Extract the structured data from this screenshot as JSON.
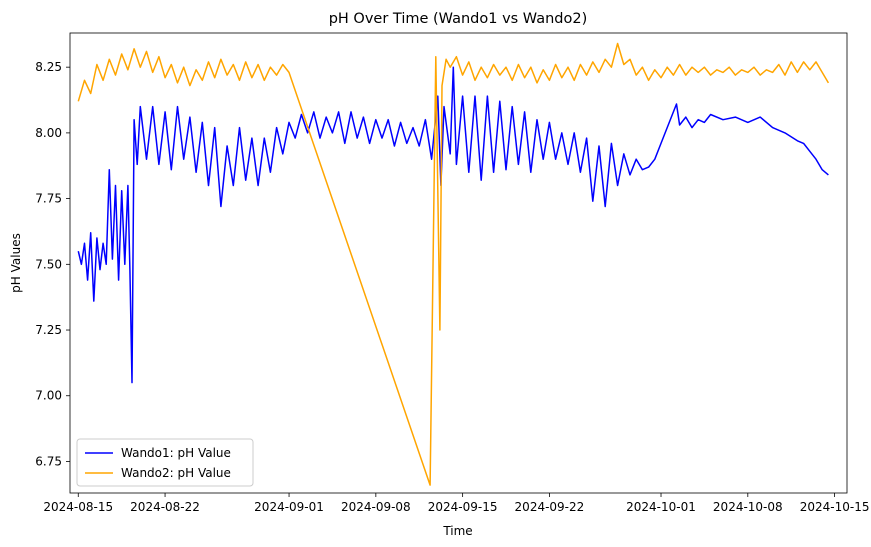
{
  "chart_data": {
    "type": "line",
    "title": "pH Over Time (Wando1 vs Wando2)",
    "xlabel": "Time",
    "ylabel": "pH Values",
    "x_ticks": [
      "2024-08-15",
      "2024-08-22",
      "2024-09-01",
      "2024-09-08",
      "2024-09-15",
      "2024-09-22",
      "2024-10-01",
      "2024-10-08",
      "2024-10-15"
    ],
    "y_ticks": [
      "6.75",
      "7.00",
      "7.25",
      "7.50",
      "7.75",
      "8.00",
      "8.25"
    ],
    "xlim": [
      "2024-08-14T08:00",
      "2024-10-16T00:00"
    ],
    "ylim": [
      6.63,
      8.38
    ],
    "grid": false,
    "legend_position": "lower-left",
    "series": [
      {
        "name": "Wando1: pH Value",
        "color": "#0000ff",
        "points": [
          [
            "2024-08-15T00:00",
            7.55
          ],
          [
            "2024-08-15T06:00",
            7.5
          ],
          [
            "2024-08-15T12:00",
            7.58
          ],
          [
            "2024-08-15T18:00",
            7.44
          ],
          [
            "2024-08-16T00:00",
            7.62
          ],
          [
            "2024-08-16T06:00",
            7.36
          ],
          [
            "2024-08-16T12:00",
            7.6
          ],
          [
            "2024-08-16T18:00",
            7.48
          ],
          [
            "2024-08-17T00:00",
            7.58
          ],
          [
            "2024-08-17T06:00",
            7.5
          ],
          [
            "2024-08-17T12:00",
            7.86
          ],
          [
            "2024-08-17T18:00",
            7.52
          ],
          [
            "2024-08-18T00:00",
            7.8
          ],
          [
            "2024-08-18T06:00",
            7.44
          ],
          [
            "2024-08-18T12:00",
            7.78
          ],
          [
            "2024-08-18T18:00",
            7.5
          ],
          [
            "2024-08-19T00:00",
            7.8
          ],
          [
            "2024-08-19T04:00",
            7.48
          ],
          [
            "2024-08-19T08:00",
            7.05
          ],
          [
            "2024-08-19T12:00",
            8.05
          ],
          [
            "2024-08-19T18:00",
            7.88
          ],
          [
            "2024-08-20T00:00",
            8.1
          ],
          [
            "2024-08-20T12:00",
            7.9
          ],
          [
            "2024-08-21T00:00",
            8.1
          ],
          [
            "2024-08-21T12:00",
            7.88
          ],
          [
            "2024-08-22T00:00",
            8.08
          ],
          [
            "2024-08-22T12:00",
            7.86
          ],
          [
            "2024-08-23T00:00",
            8.1
          ],
          [
            "2024-08-23T12:00",
            7.9
          ],
          [
            "2024-08-24T00:00",
            8.06
          ],
          [
            "2024-08-24T12:00",
            7.85
          ],
          [
            "2024-08-25T00:00",
            8.04
          ],
          [
            "2024-08-25T12:00",
            7.8
          ],
          [
            "2024-08-26T00:00",
            8.02
          ],
          [
            "2024-08-26T12:00",
            7.72
          ],
          [
            "2024-08-27T00:00",
            7.95
          ],
          [
            "2024-08-27T12:00",
            7.8
          ],
          [
            "2024-08-28T00:00",
            8.02
          ],
          [
            "2024-08-28T12:00",
            7.82
          ],
          [
            "2024-08-29T00:00",
            7.98
          ],
          [
            "2024-08-29T12:00",
            7.8
          ],
          [
            "2024-08-30T00:00",
            7.98
          ],
          [
            "2024-08-30T12:00",
            7.85
          ],
          [
            "2024-08-31T00:00",
            8.02
          ],
          [
            "2024-08-31T12:00",
            7.92
          ],
          [
            "2024-09-01T00:00",
            8.04
          ],
          [
            "2024-09-01T12:00",
            7.98
          ],
          [
            "2024-09-02T00:00",
            8.07
          ],
          [
            "2024-09-02T12:00",
            8.0
          ],
          [
            "2024-09-03T00:00",
            8.08
          ],
          [
            "2024-09-03T12:00",
            7.98
          ],
          [
            "2024-09-04T00:00",
            8.06
          ],
          [
            "2024-09-04T12:00",
            8.0
          ],
          [
            "2024-09-05T00:00",
            8.08
          ],
          [
            "2024-09-05T12:00",
            7.96
          ],
          [
            "2024-09-06T00:00",
            8.08
          ],
          [
            "2024-09-06T12:00",
            7.98
          ],
          [
            "2024-09-07T00:00",
            8.06
          ],
          [
            "2024-09-07T12:00",
            7.96
          ],
          [
            "2024-09-08T00:00",
            8.05
          ],
          [
            "2024-09-08T12:00",
            7.98
          ],
          [
            "2024-09-09T00:00",
            8.05
          ],
          [
            "2024-09-09T12:00",
            7.95
          ],
          [
            "2024-09-10T00:00",
            8.04
          ],
          [
            "2024-09-10T12:00",
            7.96
          ],
          [
            "2024-09-11T00:00",
            8.02
          ],
          [
            "2024-09-11T12:00",
            7.95
          ],
          [
            "2024-09-12T00:00",
            8.05
          ],
          [
            "2024-09-12T12:00",
            7.9
          ],
          [
            "2024-09-13T00:00",
            8.14
          ],
          [
            "2024-09-13T06:00",
            7.8
          ],
          [
            "2024-09-13T12:00",
            8.1
          ],
          [
            "2024-09-14T00:00",
            7.92
          ],
          [
            "2024-09-14T06:00",
            8.25
          ],
          [
            "2024-09-14T12:00",
            7.88
          ],
          [
            "2024-09-15T00:00",
            8.14
          ],
          [
            "2024-09-15T12:00",
            7.85
          ],
          [
            "2024-09-16T00:00",
            8.14
          ],
          [
            "2024-09-16T12:00",
            7.82
          ],
          [
            "2024-09-17T00:00",
            8.14
          ],
          [
            "2024-09-17T12:00",
            7.85
          ],
          [
            "2024-09-18T00:00",
            8.12
          ],
          [
            "2024-09-18T12:00",
            7.86
          ],
          [
            "2024-09-19T00:00",
            8.1
          ],
          [
            "2024-09-19T12:00",
            7.88
          ],
          [
            "2024-09-20T00:00",
            8.08
          ],
          [
            "2024-09-20T12:00",
            7.85
          ],
          [
            "2024-09-21T00:00",
            8.05
          ],
          [
            "2024-09-21T12:00",
            7.9
          ],
          [
            "2024-09-22T00:00",
            8.04
          ],
          [
            "2024-09-22T12:00",
            7.9
          ],
          [
            "2024-09-23T00:00",
            8.0
          ],
          [
            "2024-09-23T12:00",
            7.88
          ],
          [
            "2024-09-24T00:00",
            8.0
          ],
          [
            "2024-09-24T12:00",
            7.85
          ],
          [
            "2024-09-25T00:00",
            7.98
          ],
          [
            "2024-09-25T12:00",
            7.74
          ],
          [
            "2024-09-26T00:00",
            7.95
          ],
          [
            "2024-09-26T12:00",
            7.72
          ],
          [
            "2024-09-27T00:00",
            7.96
          ],
          [
            "2024-09-27T12:00",
            7.8
          ],
          [
            "2024-09-28T00:00",
            7.92
          ],
          [
            "2024-09-28T12:00",
            7.84
          ],
          [
            "2024-09-29T00:00",
            7.9
          ],
          [
            "2024-09-29T12:00",
            7.86
          ],
          [
            "2024-09-30T00:00",
            7.87
          ],
          [
            "2024-09-30T12:00",
            7.9
          ],
          [
            "2024-10-01T00:00",
            7.96
          ],
          [
            "2024-10-01T12:00",
            8.02
          ],
          [
            "2024-10-02T00:00",
            8.08
          ],
          [
            "2024-10-02T06:00",
            8.11
          ],
          [
            "2024-10-02T12:00",
            8.03
          ],
          [
            "2024-10-03T00:00",
            8.06
          ],
          [
            "2024-10-03T12:00",
            8.02
          ],
          [
            "2024-10-04T00:00",
            8.05
          ],
          [
            "2024-10-04T12:00",
            8.04
          ],
          [
            "2024-10-05T00:00",
            8.07
          ],
          [
            "2024-10-06T00:00",
            8.05
          ],
          [
            "2024-10-07T00:00",
            8.06
          ],
          [
            "2024-10-08T00:00",
            8.04
          ],
          [
            "2024-10-09T00:00",
            8.06
          ],
          [
            "2024-10-10T00:00",
            8.02
          ],
          [
            "2024-10-11T00:00",
            8.0
          ],
          [
            "2024-10-12T00:00",
            7.97
          ],
          [
            "2024-10-12T12:00",
            7.96
          ],
          [
            "2024-10-13T00:00",
            7.93
          ],
          [
            "2024-10-13T12:00",
            7.9
          ],
          [
            "2024-10-14T00:00",
            7.86
          ],
          [
            "2024-10-14T12:00",
            7.84
          ]
        ]
      },
      {
        "name": "Wando2: pH Value",
        "color": "#ffa500",
        "points": [
          [
            "2024-08-15T00:00",
            8.12
          ],
          [
            "2024-08-15T12:00",
            8.2
          ],
          [
            "2024-08-16T00:00",
            8.15
          ],
          [
            "2024-08-16T12:00",
            8.26
          ],
          [
            "2024-08-17T00:00",
            8.2
          ],
          [
            "2024-08-17T12:00",
            8.28
          ],
          [
            "2024-08-18T00:00",
            8.22
          ],
          [
            "2024-08-18T12:00",
            8.3
          ],
          [
            "2024-08-19T00:00",
            8.24
          ],
          [
            "2024-08-19T12:00",
            8.32
          ],
          [
            "2024-08-20T00:00",
            8.25
          ],
          [
            "2024-08-20T12:00",
            8.31
          ],
          [
            "2024-08-21T00:00",
            8.23
          ],
          [
            "2024-08-21T12:00",
            8.29
          ],
          [
            "2024-08-22T00:00",
            8.21
          ],
          [
            "2024-08-22T12:00",
            8.26
          ],
          [
            "2024-08-23T00:00",
            8.19
          ],
          [
            "2024-08-23T12:00",
            8.25
          ],
          [
            "2024-08-24T00:00",
            8.18
          ],
          [
            "2024-08-24T12:00",
            8.24
          ],
          [
            "2024-08-25T00:00",
            8.2
          ],
          [
            "2024-08-25T12:00",
            8.27
          ],
          [
            "2024-08-26T00:00",
            8.21
          ],
          [
            "2024-08-26T12:00",
            8.28
          ],
          [
            "2024-08-27T00:00",
            8.22
          ],
          [
            "2024-08-27T12:00",
            8.26
          ],
          [
            "2024-08-28T00:00",
            8.2
          ],
          [
            "2024-08-28T12:00",
            8.27
          ],
          [
            "2024-08-29T00:00",
            8.21
          ],
          [
            "2024-08-29T12:00",
            8.26
          ],
          [
            "2024-08-30T00:00",
            8.2
          ],
          [
            "2024-08-30T12:00",
            8.25
          ],
          [
            "2024-08-31T00:00",
            8.22
          ],
          [
            "2024-08-31T12:00",
            8.26
          ],
          [
            "2024-09-01T00:00",
            8.23
          ],
          [
            "2024-09-12T09:00",
            6.66
          ],
          [
            "2024-09-12T20:00",
            8.29
          ],
          [
            "2024-09-13T04:00",
            7.25
          ],
          [
            "2024-09-13T08:00",
            8.18
          ],
          [
            "2024-09-13T16:00",
            8.28
          ],
          [
            "2024-09-14T00:00",
            8.25
          ],
          [
            "2024-09-14T12:00",
            8.29
          ],
          [
            "2024-09-15T00:00",
            8.22
          ],
          [
            "2024-09-15T12:00",
            8.27
          ],
          [
            "2024-09-16T00:00",
            8.2
          ],
          [
            "2024-09-16T12:00",
            8.25
          ],
          [
            "2024-09-17T00:00",
            8.21
          ],
          [
            "2024-09-17T12:00",
            8.26
          ],
          [
            "2024-09-18T00:00",
            8.22
          ],
          [
            "2024-09-18T12:00",
            8.25
          ],
          [
            "2024-09-19T00:00",
            8.2
          ],
          [
            "2024-09-19T12:00",
            8.26
          ],
          [
            "2024-09-20T00:00",
            8.21
          ],
          [
            "2024-09-20T12:00",
            8.25
          ],
          [
            "2024-09-21T00:00",
            8.19
          ],
          [
            "2024-09-21T12:00",
            8.24
          ],
          [
            "2024-09-22T00:00",
            8.2
          ],
          [
            "2024-09-22T12:00",
            8.26
          ],
          [
            "2024-09-23T00:00",
            8.21
          ],
          [
            "2024-09-23T12:00",
            8.25
          ],
          [
            "2024-09-24T00:00",
            8.2
          ],
          [
            "2024-09-24T12:00",
            8.26
          ],
          [
            "2024-09-25T00:00",
            8.22
          ],
          [
            "2024-09-25T12:00",
            8.27
          ],
          [
            "2024-09-26T00:00",
            8.23
          ],
          [
            "2024-09-26T12:00",
            8.28
          ],
          [
            "2024-09-27T00:00",
            8.25
          ],
          [
            "2024-09-27T12:00",
            8.34
          ],
          [
            "2024-09-28T00:00",
            8.26
          ],
          [
            "2024-09-28T12:00",
            8.28
          ],
          [
            "2024-09-29T00:00",
            8.22
          ],
          [
            "2024-09-29T12:00",
            8.25
          ],
          [
            "2024-09-30T00:00",
            8.2
          ],
          [
            "2024-09-30T12:00",
            8.24
          ],
          [
            "2024-10-01T00:00",
            8.21
          ],
          [
            "2024-10-01T12:00",
            8.25
          ],
          [
            "2024-10-02T00:00",
            8.22
          ],
          [
            "2024-10-02T12:00",
            8.26
          ],
          [
            "2024-10-03T00:00",
            8.22
          ],
          [
            "2024-10-03T12:00",
            8.25
          ],
          [
            "2024-10-04T00:00",
            8.23
          ],
          [
            "2024-10-04T12:00",
            8.25
          ],
          [
            "2024-10-05T00:00",
            8.22
          ],
          [
            "2024-10-05T12:00",
            8.24
          ],
          [
            "2024-10-06T00:00",
            8.23
          ],
          [
            "2024-10-06T12:00",
            8.25
          ],
          [
            "2024-10-07T00:00",
            8.22
          ],
          [
            "2024-10-07T12:00",
            8.24
          ],
          [
            "2024-10-08T00:00",
            8.23
          ],
          [
            "2024-10-08T12:00",
            8.25
          ],
          [
            "2024-10-09T00:00",
            8.22
          ],
          [
            "2024-10-09T12:00",
            8.24
          ],
          [
            "2024-10-10T00:00",
            8.23
          ],
          [
            "2024-10-10T12:00",
            8.26
          ],
          [
            "2024-10-11T00:00",
            8.22
          ],
          [
            "2024-10-11T12:00",
            8.27
          ],
          [
            "2024-10-12T00:00",
            8.23
          ],
          [
            "2024-10-12T12:00",
            8.27
          ],
          [
            "2024-10-13T00:00",
            8.24
          ],
          [
            "2024-10-13T12:00",
            8.27
          ],
          [
            "2024-10-14T00:00",
            8.23
          ],
          [
            "2024-10-14T12:00",
            8.19
          ]
        ]
      }
    ]
  }
}
